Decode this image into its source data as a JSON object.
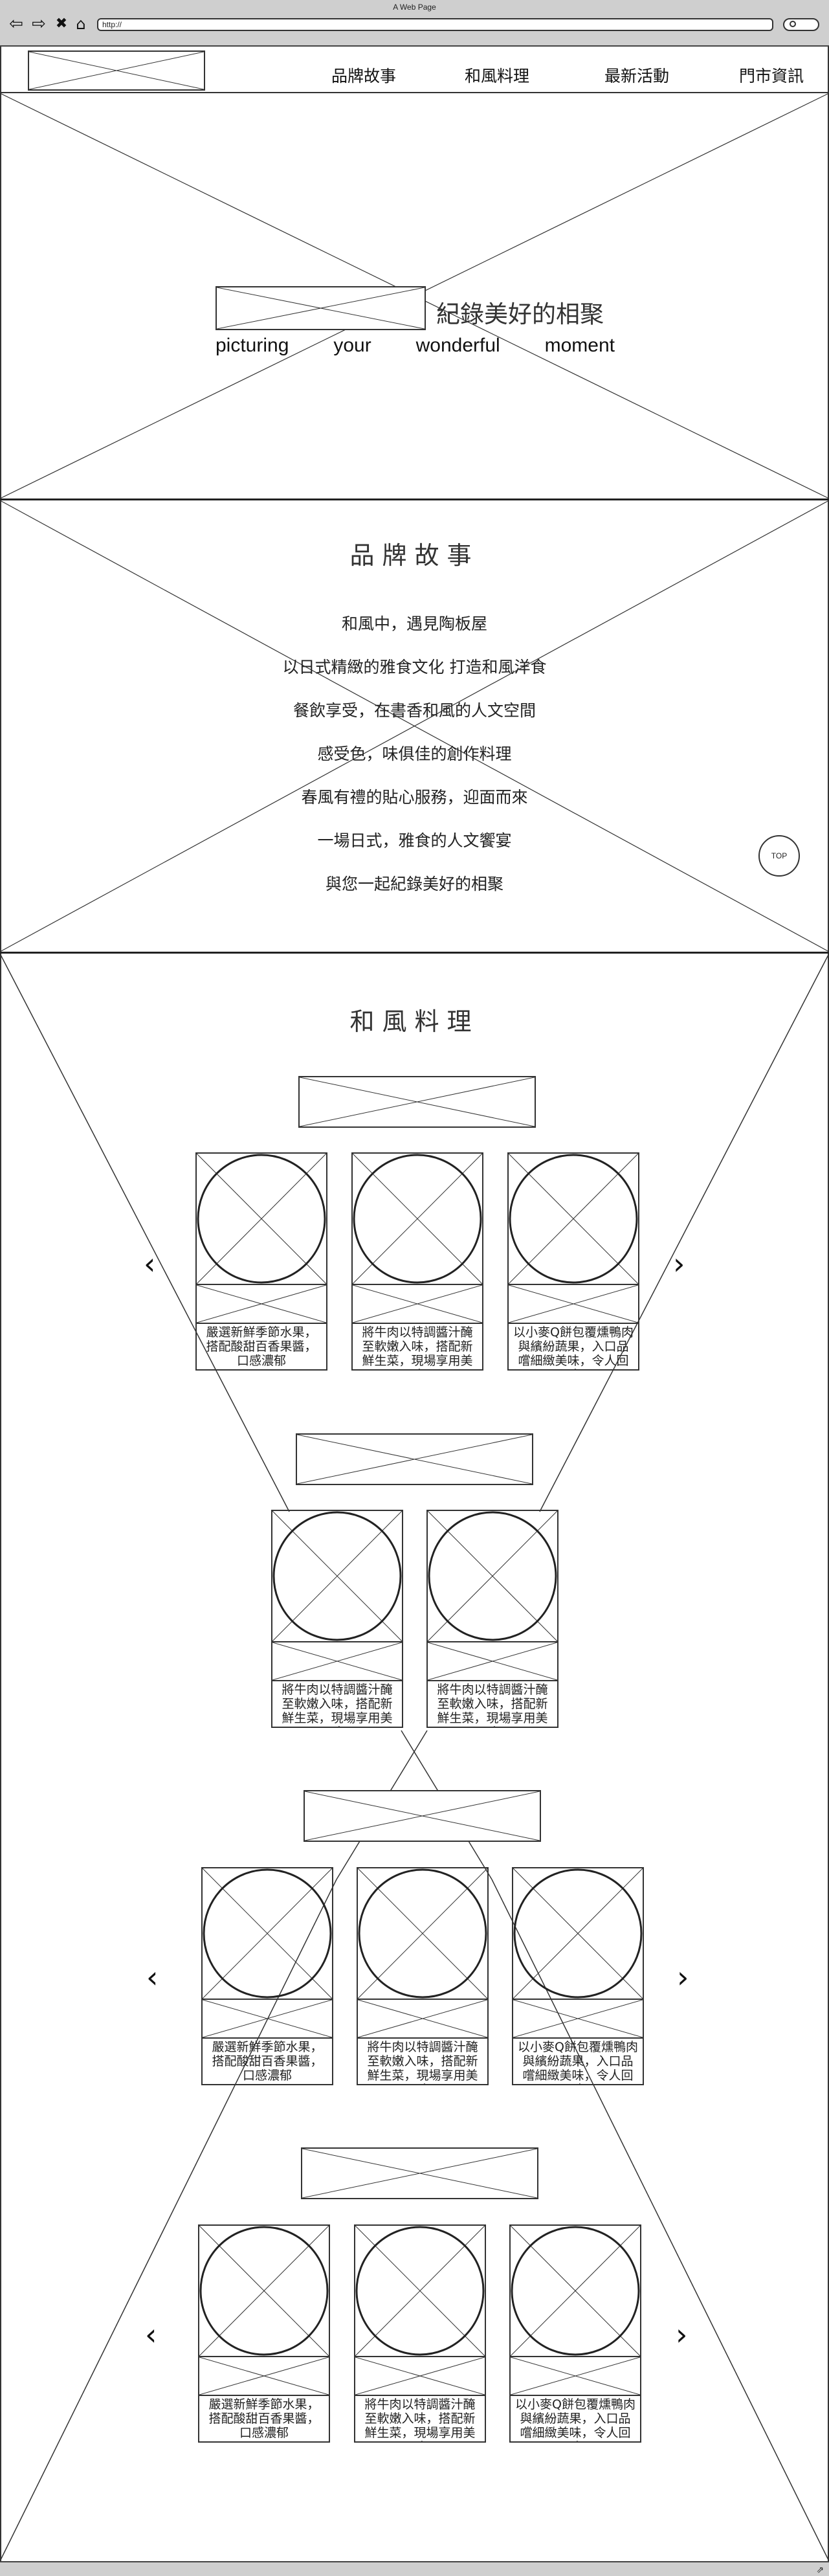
{
  "window": {
    "title": "A Web Page",
    "url": "http://"
  },
  "nav": {
    "logo": "",
    "items": [
      "品牌故事",
      "和風料理",
      "最新活動",
      "門市資訊"
    ]
  },
  "hero": {
    "title": "紀錄美好的相聚",
    "subtitle_words": [
      "picturing",
      "your",
      "wonderful",
      "moment"
    ]
  },
  "story": {
    "title": "品牌故事",
    "lines": [
      "和風中，遇見陶板屋",
      "以日式精緻的雅食文化 打造和風洋食",
      "餐飲享受，在書香和風的人文空間",
      "感受色，味俱佳的創作料理",
      "春風有禮的貼心服務，迎面而來",
      "一場日式，雅食的人文饗宴",
      "與您一起紀錄美好的相聚"
    ],
    "top_button": "TOP"
  },
  "menu": {
    "title": "和風料理",
    "arrow_prev": "‹",
    "arrow_next": "›",
    "groups": [
      {
        "cards": [
          "嚴選新鮮季節水果，搭配酸甜百香果醬，口感濃郁",
          "將牛肉以特調醬汁醃至軟嫩入味，搭配新鮮生菜，現場享用美味",
          "以小麥Q餅包覆燻鴨肉與繽紛蔬果，入口品嚐細緻美味，令人回味"
        ]
      },
      {
        "cards": [
          "將牛肉以特調醬汁醃至軟嫩入味，搭配新鮮生菜，現場享用美味",
          "將牛肉以特調醬汁醃至軟嫩入味，搭配新鮮生菜，現場享用美味"
        ]
      },
      {
        "cards": [
          "嚴選新鮮季節水果，搭配酸甜百香果醬，口感濃郁",
          "將牛肉以特調醬汁醃至軟嫩入味，搭配新鮮生菜，現場享用美味",
          "以小麥Q餅包覆燻鴨肉與繽紛蔬果，入口品嚐細緻美味，令人回味"
        ]
      },
      {
        "cards": [
          "嚴選新鮮季節水果，搭配酸甜百香果醬，口感濃郁",
          "將牛肉以特調醬汁醃至軟嫩入味，搭配新鮮生菜，現場享用美味",
          "以小麥Q餅包覆燻鴨肉與繽紛蔬果，入口品嚐細緻美味，令人回味"
        ]
      }
    ]
  },
  "icons": {
    "back": "back-arrow-icon",
    "forward": "forward-arrow-icon",
    "stop": "stop-icon",
    "home": "home-icon",
    "search": "search-icon",
    "resize": "resize-grip-icon"
  }
}
